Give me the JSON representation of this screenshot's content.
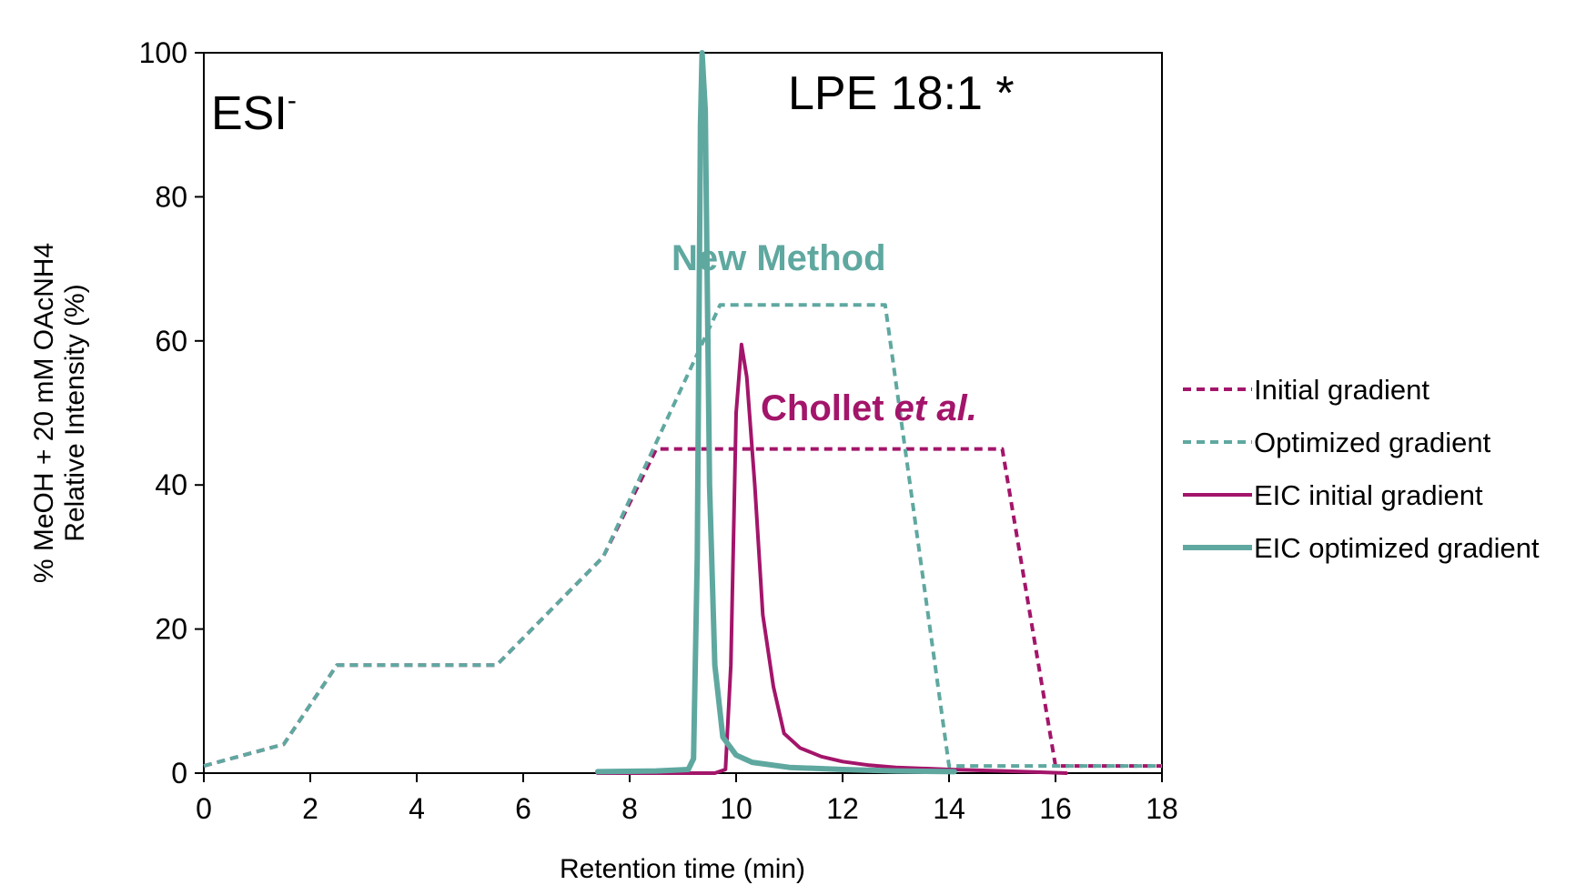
{
  "chart_data": {
    "type": "line",
    "title": "",
    "xlabel": "Retention time (min)",
    "ylabel_line1": "% MeOH + 20 mM OAcNH4",
    "ylabel_line2": "Relative Intensity (%)",
    "xlim": [
      0,
      18
    ],
    "ylim": [
      0,
      100
    ],
    "x_ticks": [
      0,
      2,
      4,
      6,
      8,
      10,
      12,
      14,
      16,
      18
    ],
    "y_ticks": [
      0,
      20,
      40,
      60,
      80,
      100
    ],
    "grid": false,
    "legend_position": "right",
    "annotations": {
      "esi_base": "ESI",
      "esi_sup": "-",
      "compound": "LPE 18:1 *",
      "new_method": "New Method",
      "chollet_main": "Chollet ",
      "chollet_italic": "et al."
    },
    "colors": {
      "magenta": "#A3156A",
      "teal": "#5FA8A0"
    },
    "series": [
      {
        "name": "Initial gradient",
        "style": "dashed",
        "color": "#A3156A",
        "points": [
          [
            0,
            1
          ],
          [
            1.5,
            4
          ],
          [
            2.5,
            15
          ],
          [
            5.5,
            15
          ],
          [
            7.5,
            30
          ],
          [
            8.5,
            45
          ],
          [
            15,
            45
          ],
          [
            16,
            1
          ],
          [
            18,
            1
          ]
        ]
      },
      {
        "name": "Optimized gradient",
        "style": "dashed",
        "color": "#5FA8A0",
        "points": [
          [
            0,
            1
          ],
          [
            1.5,
            4
          ],
          [
            2.5,
            15
          ],
          [
            5.5,
            15
          ],
          [
            7.5,
            30
          ],
          [
            9.7,
            65
          ],
          [
            12.8,
            65
          ],
          [
            14,
            1
          ],
          [
            18,
            1
          ]
        ]
      },
      {
        "name": "EIC initial gradient",
        "style": "solid",
        "color": "#A3156A",
        "points": [
          [
            7.4,
            0
          ],
          [
            9.6,
            0
          ],
          [
            9.8,
            0.5
          ],
          [
            9.9,
            15
          ],
          [
            10.0,
            50
          ],
          [
            10.1,
            59.5
          ],
          [
            10.2,
            55
          ],
          [
            10.35,
            40
          ],
          [
            10.5,
            22
          ],
          [
            10.7,
            12
          ],
          [
            10.9,
            5.5
          ],
          [
            11.2,
            3.5
          ],
          [
            11.6,
            2.3
          ],
          [
            12.0,
            1.6
          ],
          [
            12.5,
            1.1
          ],
          [
            13,
            0.8
          ],
          [
            14,
            0.5
          ],
          [
            15,
            0.3
          ],
          [
            16.2,
            0
          ]
        ]
      },
      {
        "name": "EIC optimized gradient",
        "style": "solid",
        "color": "#5FA8A0",
        "points": [
          [
            7.4,
            0.2
          ],
          [
            8.5,
            0.3
          ],
          [
            9.1,
            0.5
          ],
          [
            9.2,
            2
          ],
          [
            9.27,
            30
          ],
          [
            9.33,
            90
          ],
          [
            9.36,
            100
          ],
          [
            9.42,
            92
          ],
          [
            9.5,
            40
          ],
          [
            9.6,
            15
          ],
          [
            9.75,
            5
          ],
          [
            10.0,
            2.5
          ],
          [
            10.3,
            1.5
          ],
          [
            11,
            0.8
          ],
          [
            12,
            0.5
          ],
          [
            13,
            0.3
          ],
          [
            14.1,
            0.2
          ]
        ]
      }
    ]
  }
}
